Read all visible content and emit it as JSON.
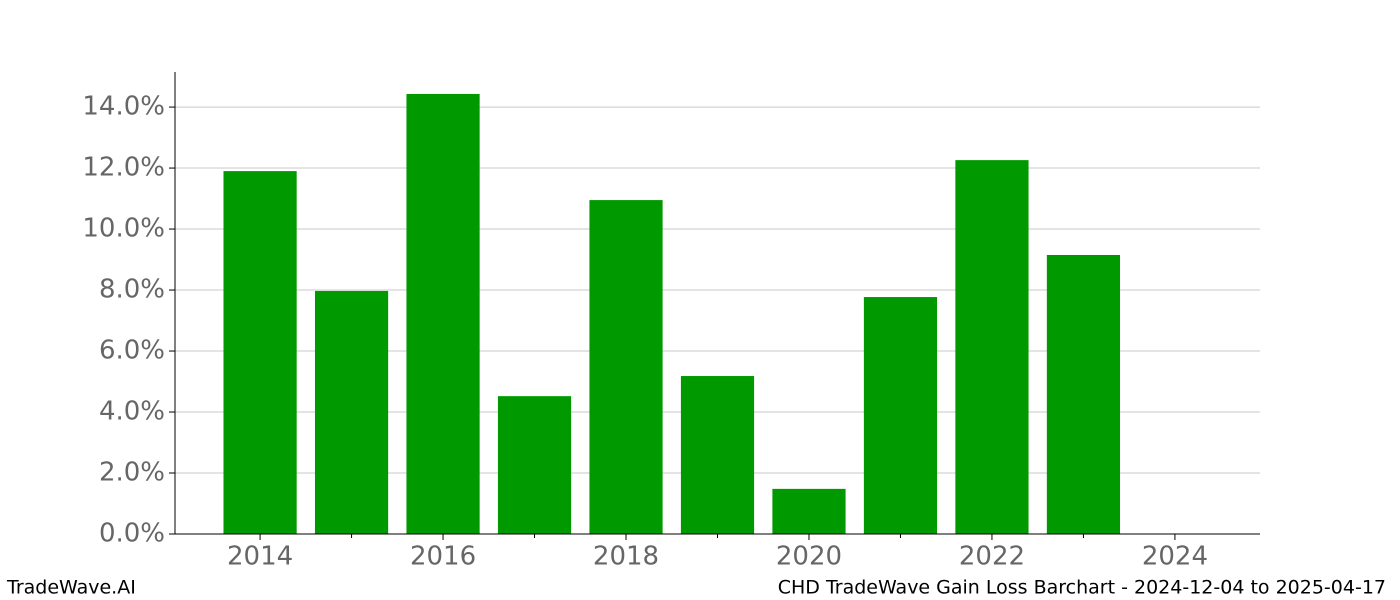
{
  "chart_data": {
    "type": "bar",
    "x": [
      2014,
      2015,
      2016,
      2017,
      2018,
      2019,
      2020,
      2021,
      2022,
      2023
    ],
    "values": [
      11.9,
      7.97,
      14.43,
      4.52,
      10.95,
      5.18,
      1.48,
      7.77,
      12.26,
      9.15
    ],
    "color": "#009900",
    "xlim": [
      2013.07,
      2024.93
    ],
    "xticks": [
      2014,
      2016,
      2018,
      2020,
      2022,
      2024
    ],
    "x_minor_ticks": [
      2015,
      2017,
      2019,
      2021,
      2023
    ],
    "ylim": [
      0,
      15.15
    ],
    "yticks": [
      {
        "value": 0,
        "label": "0.0%"
      },
      {
        "value": 2,
        "label": "2.0%"
      },
      {
        "value": 4,
        "label": "4.0%"
      },
      {
        "value": 6,
        "label": "6.0%"
      },
      {
        "value": 8,
        "label": "8.0%"
      },
      {
        "value": 10,
        "label": "10.0%"
      },
      {
        "value": 12,
        "label": "12.0%"
      },
      {
        "value": 14,
        "label": "14.0%"
      }
    ],
    "grid": true
  },
  "footer": {
    "left": "TradeWave.AI",
    "right": "CHD TradeWave Gain Loss Barchart - 2024-12-04 to 2025-04-17"
  }
}
